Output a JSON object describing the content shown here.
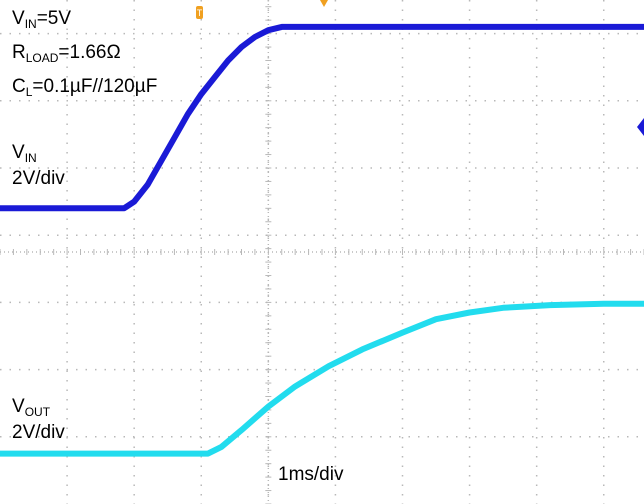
{
  "annotations": {
    "vin_line": {
      "main": "V",
      "sub": "IN",
      "rest": "=5V"
    },
    "rload_line": {
      "main": "R",
      "sub": "LOAD",
      "rest": "=1.66Ω"
    },
    "cl_line": {
      "main": "C",
      "sub": "L",
      "rest": "=0.1µF//120µF"
    },
    "vin_channel": {
      "main": "V",
      "sub": "IN",
      "scale": "2V/div"
    },
    "vout_channel": {
      "main": "V",
      "sub": "OUT",
      "scale": "2V/div"
    },
    "timebase": "1ms/div"
  },
  "colors": {
    "background": "#ffffff",
    "vin_trace": "#1a1ad6",
    "vout_trace": "#22dcee",
    "grid": "#b8b8b8",
    "orange_marker": "#f0a020"
  },
  "chart_data": {
    "type": "line",
    "title": "",
    "xlabel": "1ms/div",
    "ylabel": "2V/div",
    "x_units": "divisions",
    "y_units": "divisions",
    "xlim": [
      0,
      9.6
    ],
    "ylim": [
      0,
      7.5
    ],
    "grid": true,
    "series": [
      {
        "name": "VIN",
        "color": "#1a1ad6",
        "x": [
          0,
          1.85,
          2.0,
          2.2,
          2.4,
          2.6,
          2.8,
          3.0,
          3.2,
          3.4,
          3.6,
          3.8,
          4.0,
          4.2,
          4.4,
          9.6
        ],
        "y": [
          4.4,
          4.4,
          4.5,
          4.75,
          5.1,
          5.45,
          5.8,
          6.1,
          6.35,
          6.6,
          6.8,
          6.95,
          7.05,
          7.1,
          7.1,
          7.1
        ]
      },
      {
        "name": "VOUT",
        "color": "#22dcee",
        "x": [
          0,
          3.1,
          3.3,
          3.6,
          4.0,
          4.4,
          4.9,
          5.4,
          6.0,
          6.5,
          7.0,
          7.5,
          8.2,
          9.0,
          9.6
        ],
        "y": [
          0.75,
          0.75,
          0.85,
          1.1,
          1.45,
          1.75,
          2.05,
          2.3,
          2.55,
          2.75,
          2.85,
          2.92,
          2.96,
          2.98,
          2.98
        ]
      }
    ]
  }
}
